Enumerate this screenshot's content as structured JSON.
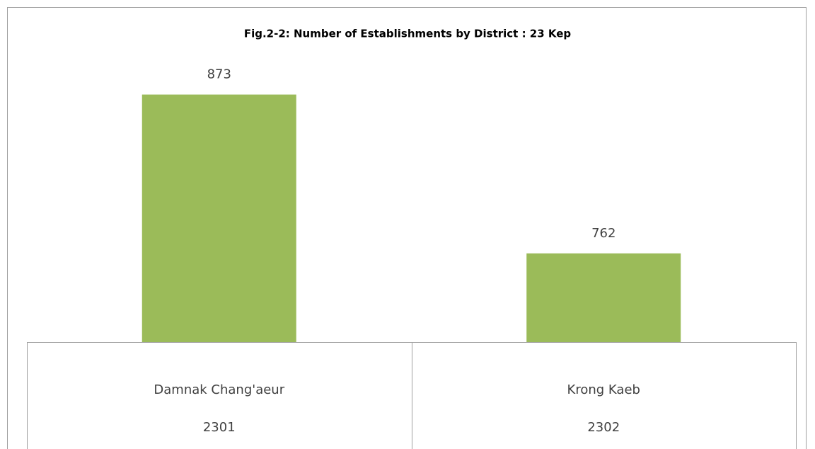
{
  "chart_data": {
    "type": "bar",
    "title": "Fig.2-2: Number of Establishments by District : 23 Kep",
    "categories": [
      "Damnak Chang'aeur",
      "Krong Kaeb"
    ],
    "codes": [
      "2301",
      "2302"
    ],
    "values": [
      873,
      762
    ],
    "color": "#9bbb59",
    "ylim": [
      700,
      900
    ]
  }
}
